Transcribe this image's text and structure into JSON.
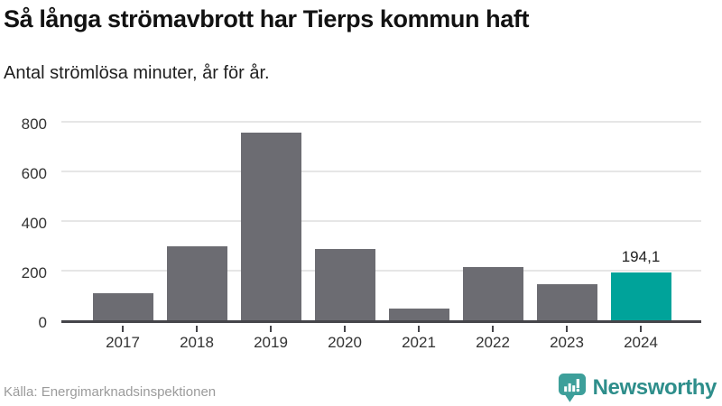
{
  "header": {
    "title": "Så långa strömavbrott har Tierps kommun haft",
    "subtitle": "Antal strömlösa minuter, år för år."
  },
  "chart_data": {
    "type": "bar",
    "title": "Så långa strömavbrott har Tierps kommun haft",
    "subtitle": "Antal strömlösa minuter, år för år.",
    "categories": [
      "2017",
      "2018",
      "2019",
      "2020",
      "2021",
      "2022",
      "2023",
      "2024"
    ],
    "values": [
      110,
      300,
      755,
      286,
      47,
      213,
      145,
      194.1
    ],
    "highlight_index": 7,
    "value_labels": {
      "7": "194,1"
    },
    "ylim": [
      0,
      800
    ],
    "yticks": [
      0,
      200,
      400,
      600,
      800
    ],
    "grid": "horizontal-only",
    "legend": "none",
    "bar_color": "#6c6c72",
    "highlight_color": "#00a39a",
    "axis_line_color": "#45454a",
    "gridline_color": "#e6e6e6"
  },
  "footer": {
    "source": "Källa: Energimarknadsinspektionen",
    "brand_name": "Newsworthy",
    "brand_color": "#2e8e8b",
    "brand_icon_color": "#3d9f9a"
  }
}
